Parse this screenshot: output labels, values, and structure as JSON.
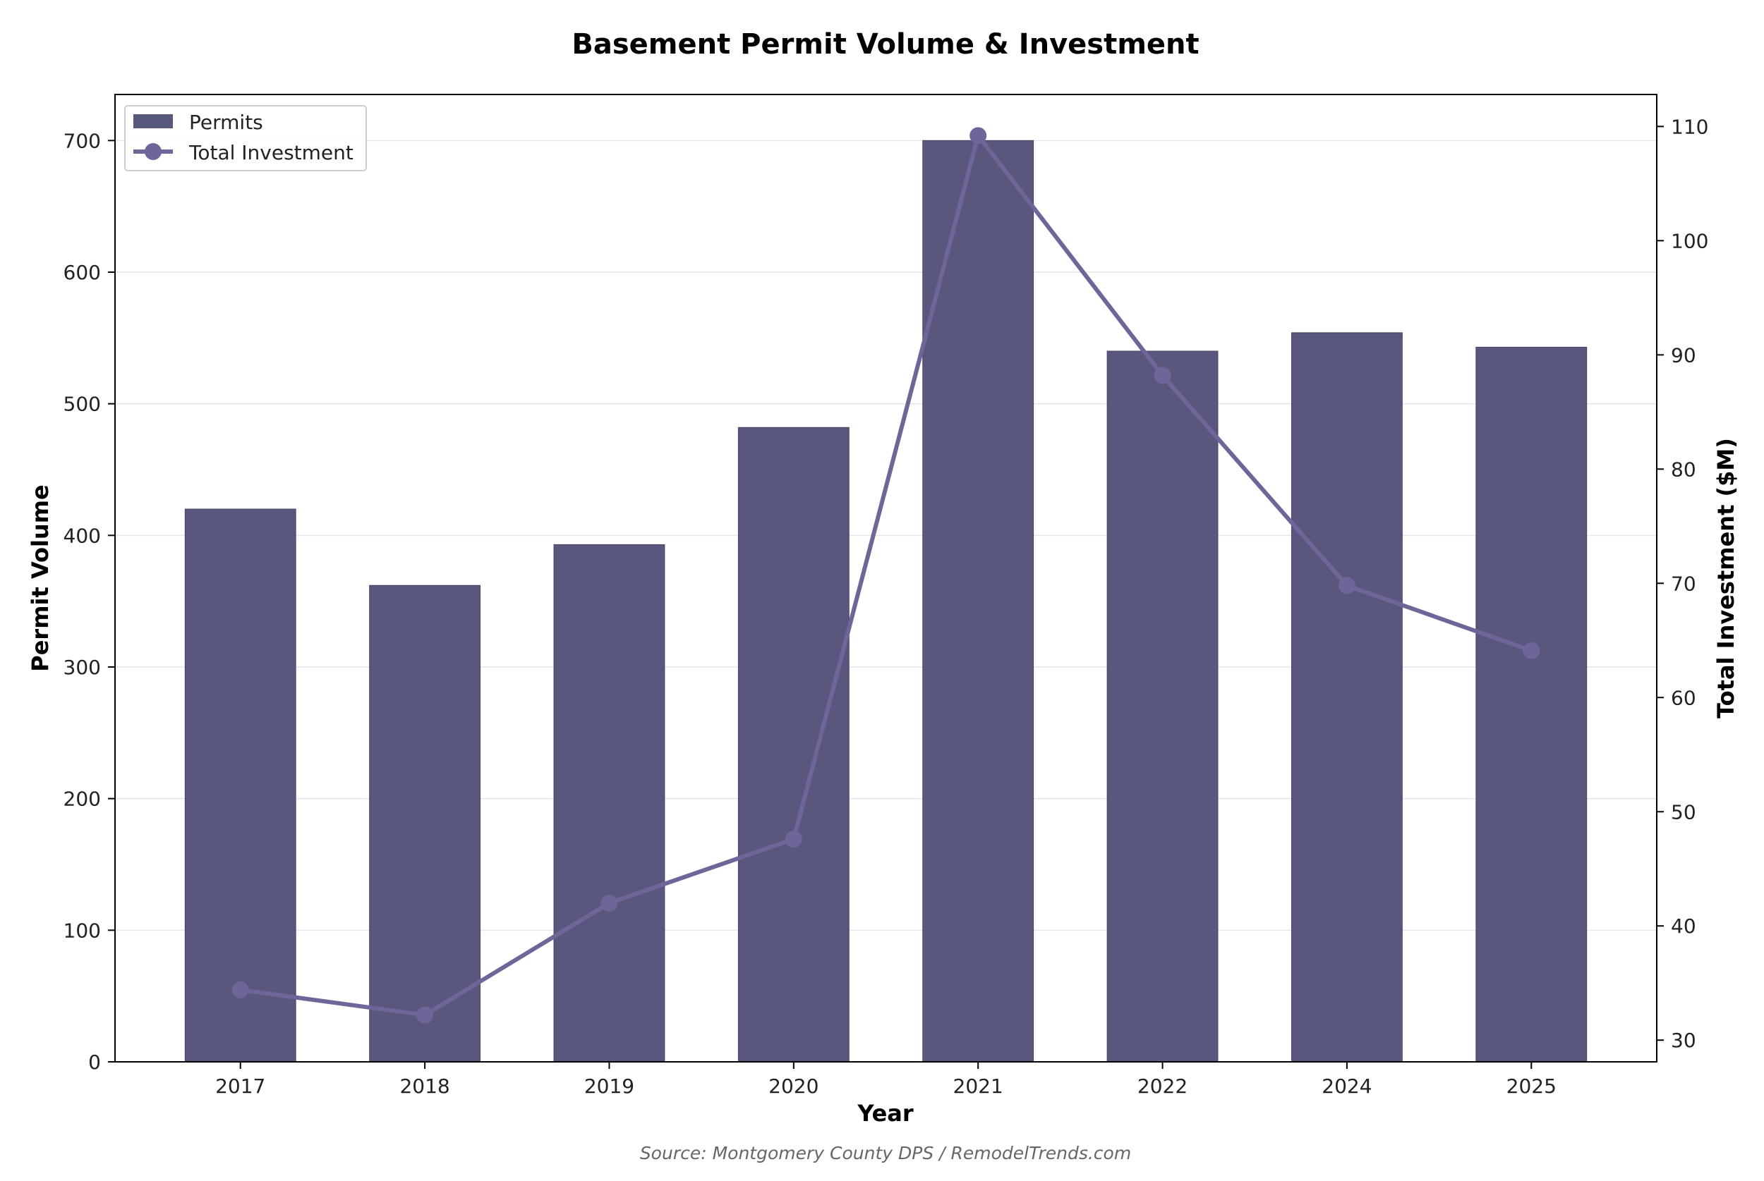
{
  "chart_data": {
    "type": "bar",
    "title": "Basement Permit Volume & Investment",
    "xlabel": "Year",
    "ylabel": "Permit Volume",
    "y2label": "Total Investment ($M)",
    "source": "Source: Montgomery County DPS / RemodelTrends.com",
    "categories": [
      "2017",
      "2018",
      "2019",
      "2020",
      "2021",
      "2022",
      "2024",
      "2025"
    ],
    "series": [
      {
        "name": "Permits",
        "type": "bar",
        "axis": "left",
        "values": [
          420,
          362,
          393,
          482,
          700,
          540,
          554,
          543
        ]
      },
      {
        "name": "Total Investment",
        "type": "line",
        "axis": "right",
        "values": [
          34.4,
          32.2,
          42.0,
          47.6,
          109.2,
          88.2,
          69.8,
          64.1
        ]
      }
    ],
    "ylim": [
      0,
      735
    ],
    "y_ticks": [
      0,
      100,
      200,
      300,
      400,
      500,
      600,
      700
    ],
    "y2lim": [
      28.1,
      112.8
    ],
    "y2_ticks": [
      30,
      40,
      50,
      60,
      70,
      80,
      90,
      100,
      110
    ],
    "grid": "horizontal",
    "legend_position": "top-left",
    "colors": {
      "bar": "#5a577e",
      "line": "#6e6699",
      "grid": "#e6e6e6"
    }
  }
}
